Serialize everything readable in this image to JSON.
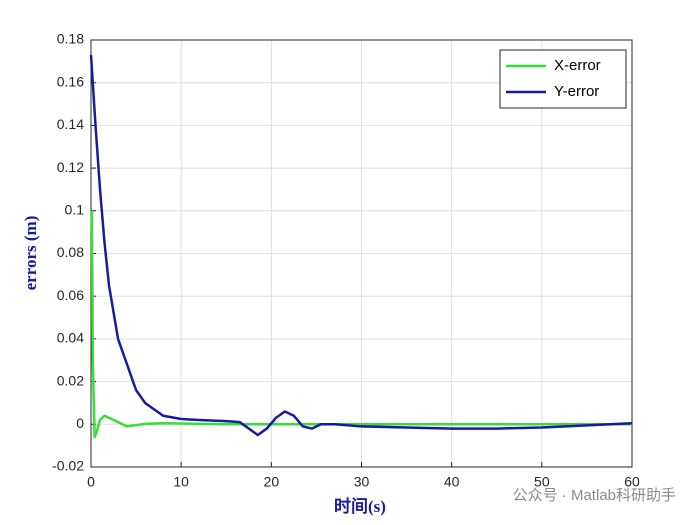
{
  "chart_data": {
    "type": "line",
    "xlabel": "时间(s)",
    "ylabel": "errors (m)",
    "watermark": "公众号 · Matlab科研助手",
    "series": [
      {
        "name": "X-error",
        "color": "#33e033",
        "x": [
          0.1,
          0.2,
          0.4,
          0.6,
          1,
          1.5,
          2.5,
          4,
          6,
          8,
          15,
          25,
          60
        ],
        "values": [
          0.1,
          0.03,
          -0.006,
          -0.004,
          0.002,
          0.004,
          0.002,
          -0.001,
          0.0002,
          0.0005,
          0,
          0,
          0
        ]
      },
      {
        "name": "Y-error",
        "color": "#1a1aa0",
        "x": [
          0,
          0.5,
          1,
          1.5,
          2,
          3,
          4,
          5,
          6,
          7,
          8,
          10,
          12,
          15,
          16.5,
          17.5,
          18.5,
          19.5,
          20.5,
          21.5,
          22.5,
          23.5,
          24.5,
          25.5,
          27,
          30,
          35,
          40,
          45,
          50,
          55,
          60
        ],
        "values": [
          0.173,
          0.14,
          0.11,
          0.085,
          0.065,
          0.04,
          0.028,
          0.016,
          0.01,
          0.007,
          0.004,
          0.0025,
          0.002,
          0.0015,
          0.001,
          -0.002,
          -0.005,
          -0.002,
          0.003,
          0.006,
          0.004,
          -0.001,
          -0.002,
          0,
          0,
          -0.001,
          -0.0015,
          -0.002,
          -0.002,
          -0.0015,
          -0.0005,
          0.0005
        ]
      }
    ],
    "xlim": [
      0,
      60
    ],
    "xticks": [
      0,
      10,
      20,
      30,
      40,
      50,
      60
    ],
    "ylim": [
      -0.02,
      0.18
    ],
    "yticks": [
      -0.02,
      0,
      0.02,
      0.04,
      0.06,
      0.08,
      0.1,
      0.12,
      0.14,
      0.16,
      0.18
    ],
    "grid": true,
    "legend": "top-right"
  }
}
